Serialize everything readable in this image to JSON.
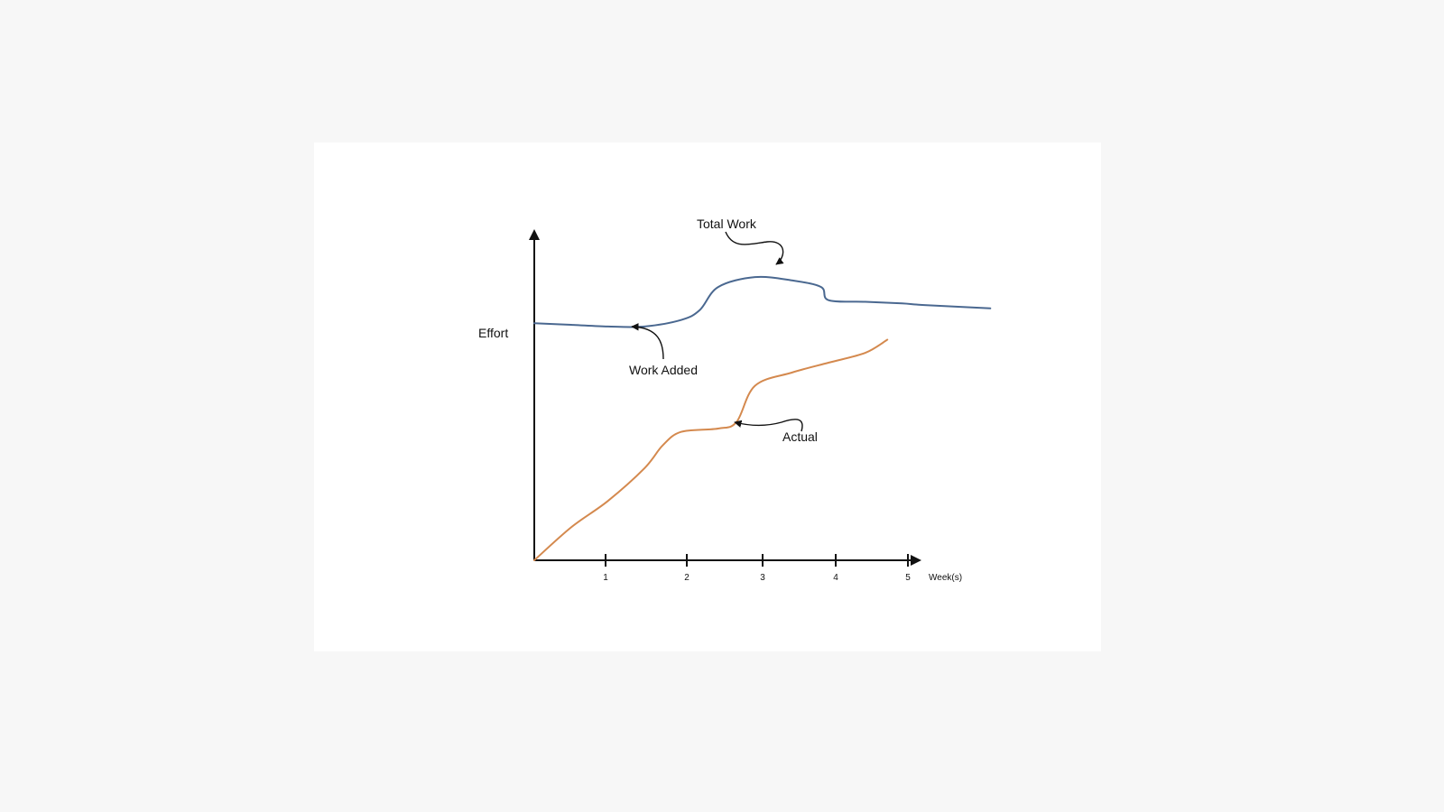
{
  "chart_data": {
    "type": "line",
    "title": "",
    "xlabel": "Week(s)",
    "ylabel": "Effort",
    "xlim": [
      0,
      5.3
    ],
    "ylim": [
      0,
      100
    ],
    "x_ticks": [
      "1",
      "2",
      "3",
      "4",
      "5"
    ],
    "y_ticks": [],
    "grid": false,
    "legend": "none",
    "series": [
      {
        "name": "Total Work",
        "color": "#4a6890",
        "x": [
          0,
          0.5,
          1.0,
          1.5,
          2.0,
          2.25,
          2.5,
          3.0,
          3.5,
          3.9,
          4.0,
          4.5,
          5.0,
          5.3,
          6.2
        ],
        "y": [
          72,
          71.5,
          71,
          71,
          73,
          76,
          83,
          86,
          85,
          83,
          79,
          78.5,
          78,
          77.5,
          76.5
        ]
      },
      {
        "name": "Actual",
        "color": "#d4894e",
        "x": [
          0,
          0.5,
          1.0,
          1.5,
          1.75,
          2.0,
          2.5,
          2.75,
          3.0,
          3.5,
          4.0,
          4.5,
          4.8
        ],
        "y": [
          0,
          10,
          18,
          28,
          35,
          39,
          40,
          42,
          53,
          57,
          60,
          63,
          67
        ]
      }
    ],
    "annotations": [
      {
        "text": "Total Work",
        "target_series": "Total Work",
        "x": 3.5,
        "y": 85
      },
      {
        "text": "Work Added",
        "target_series": "Total Work",
        "x": 1.38,
        "y": 70.5
      },
      {
        "text": "Actual",
        "target_series": "Actual",
        "x": 2.79,
        "y": 41
      }
    ]
  }
}
